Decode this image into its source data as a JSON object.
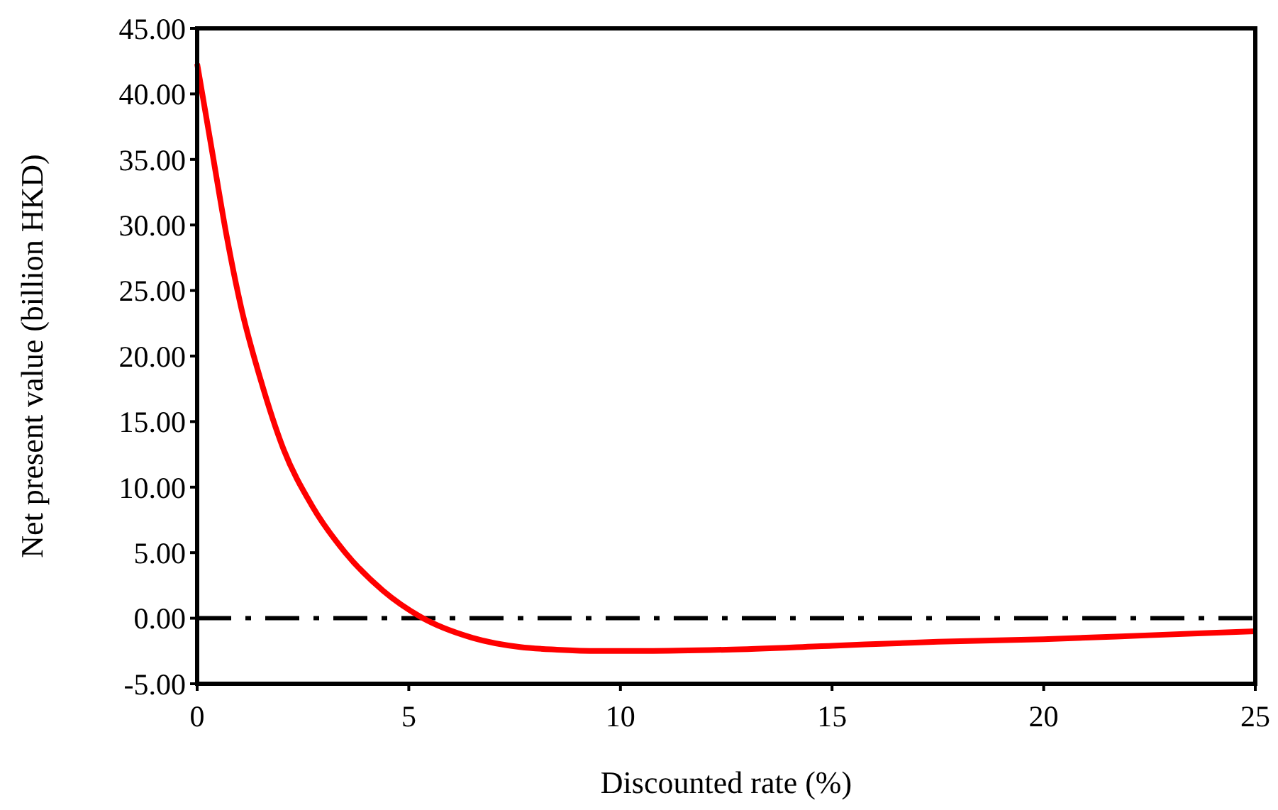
{
  "chart_data": {
    "type": "line",
    "xlabel": "Discounted rate (%)",
    "ylabel": "Net present value (billion HKD)",
    "xlim": [
      0,
      25
    ],
    "xticks": [
      0,
      5,
      10,
      15,
      20,
      25
    ],
    "ylim": [
      -5,
      45
    ],
    "yticks": [
      {
        "value": -5,
        "label": "-5.00"
      },
      {
        "value": 0,
        "label": "0.00"
      },
      {
        "value": 5,
        "label": "5.00"
      },
      {
        "value": 10,
        "label": "10.00"
      },
      {
        "value": 15,
        "label": "15.00"
      },
      {
        "value": 20,
        "label": "20.00"
      },
      {
        "value": 25,
        "label": "25.00"
      },
      {
        "value": 30,
        "label": "30.00"
      },
      {
        "value": 35,
        "label": "35.00"
      },
      {
        "value": 40,
        "label": "40.00"
      },
      {
        "value": 45,
        "label": "45.00"
      }
    ],
    "series": [
      {
        "color": "#ff0000",
        "x": [
          0,
          0.37,
          0.7,
          1.04,
          1.49,
          2.04,
          2.71,
          3.5,
          4.39,
          5.28,
          6.51,
          7.63,
          8.5,
          9.5,
          10.6,
          12.5,
          15,
          17.5,
          20,
          22.5,
          25
        ],
        "values": [
          42.3,
          35.3,
          29.1,
          23.7,
          18.3,
          12.9,
          8.6,
          5.0,
          2.1,
          0.1,
          -1.5,
          -2.2,
          -2.4,
          -2.5,
          -2.5,
          -2.4,
          -2.1,
          -1.8,
          -1.6,
          -1.3,
          -1.0
        ]
      }
    ],
    "ref_lines": [
      {
        "axis": "y",
        "value": 0,
        "color": "#000000",
        "line_style": "dashdot"
      }
    ],
    "grid": false,
    "marker": "none",
    "line_style": "solid"
  }
}
